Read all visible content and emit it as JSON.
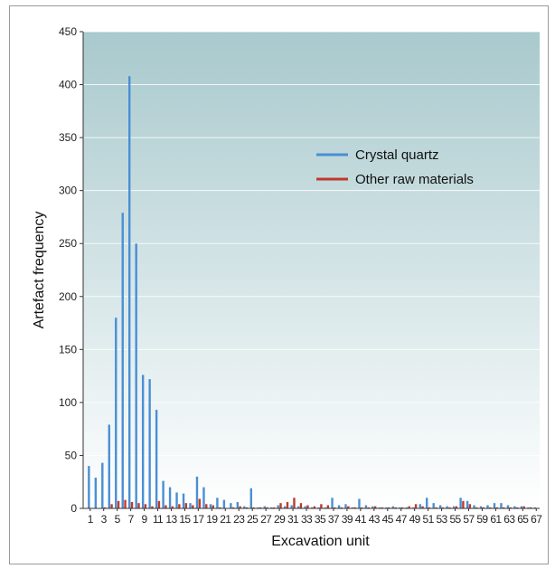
{
  "chart_data": {
    "type": "bar",
    "xlabel": "Excavation unit",
    "ylabel": "Artefact frequency",
    "ylim": [
      0,
      450
    ],
    "yticks": [
      0,
      50,
      100,
      150,
      200,
      250,
      300,
      350,
      400,
      450
    ],
    "categories": [
      1,
      2,
      3,
      4,
      5,
      6,
      7,
      8,
      9,
      10,
      11,
      12,
      13,
      14,
      15,
      16,
      17,
      18,
      19,
      20,
      21,
      22,
      23,
      24,
      25,
      26,
      27,
      28,
      29,
      30,
      31,
      32,
      33,
      34,
      35,
      36,
      37,
      38,
      39,
      40,
      41,
      42,
      43,
      44,
      45,
      46,
      47,
      48,
      49,
      50,
      51,
      52,
      53,
      54,
      55,
      56,
      57,
      58,
      59,
      60,
      61,
      62,
      63,
      64,
      65,
      66,
      67
    ],
    "xtick_labels": [
      "1",
      "3",
      "5",
      "7",
      "9",
      "11",
      "13",
      "15",
      "17",
      "19",
      "21",
      "23",
      "25",
      "27",
      "29",
      "31",
      "33",
      "35",
      "37",
      "39",
      "41",
      "43",
      "45",
      "47",
      "49",
      "51",
      "53",
      "55",
      "57",
      "59",
      "61",
      "63",
      "65",
      "67"
    ],
    "grid": true,
    "legend_position": "upper-right",
    "background": {
      "top": "#a8c9cd",
      "bottom": "#ffffff"
    },
    "series": [
      {
        "name": "Crystal quartz",
        "color": "#4a8fd4",
        "values": [
          40,
          29,
          43,
          79,
          180,
          279,
          408,
          250,
          126,
          122,
          93,
          26,
          20,
          15,
          14,
          5,
          30,
          20,
          4,
          10,
          8,
          5,
          6,
          2,
          19,
          1,
          2,
          1,
          3,
          2,
          3,
          2,
          2,
          1,
          1,
          1,
          10,
          3,
          4,
          1,
          9,
          3,
          2,
          1,
          1,
          2,
          1,
          1,
          1,
          4,
          10,
          5,
          3,
          2,
          2,
          10,
          7,
          3,
          2,
          3,
          5,
          5,
          3,
          2,
          2,
          1,
          1
        ]
      },
      {
        "name": "Other raw materials",
        "color": "#c0392b",
        "values": [
          0,
          0,
          1,
          4,
          7,
          8,
          6,
          5,
          4,
          2,
          7,
          3,
          2,
          4,
          5,
          3,
          9,
          4,
          3,
          1,
          0,
          1,
          2,
          1,
          1,
          1,
          1,
          1,
          5,
          6,
          10,
          5,
          3,
          2,
          4,
          3,
          1,
          1,
          2,
          1,
          1,
          1,
          2,
          1,
          1,
          1,
          1,
          2,
          4,
          2,
          1,
          1,
          1,
          1,
          2,
          7,
          4,
          1,
          1,
          1,
          1,
          1,
          1,
          1,
          2,
          1,
          0
        ]
      }
    ]
  }
}
